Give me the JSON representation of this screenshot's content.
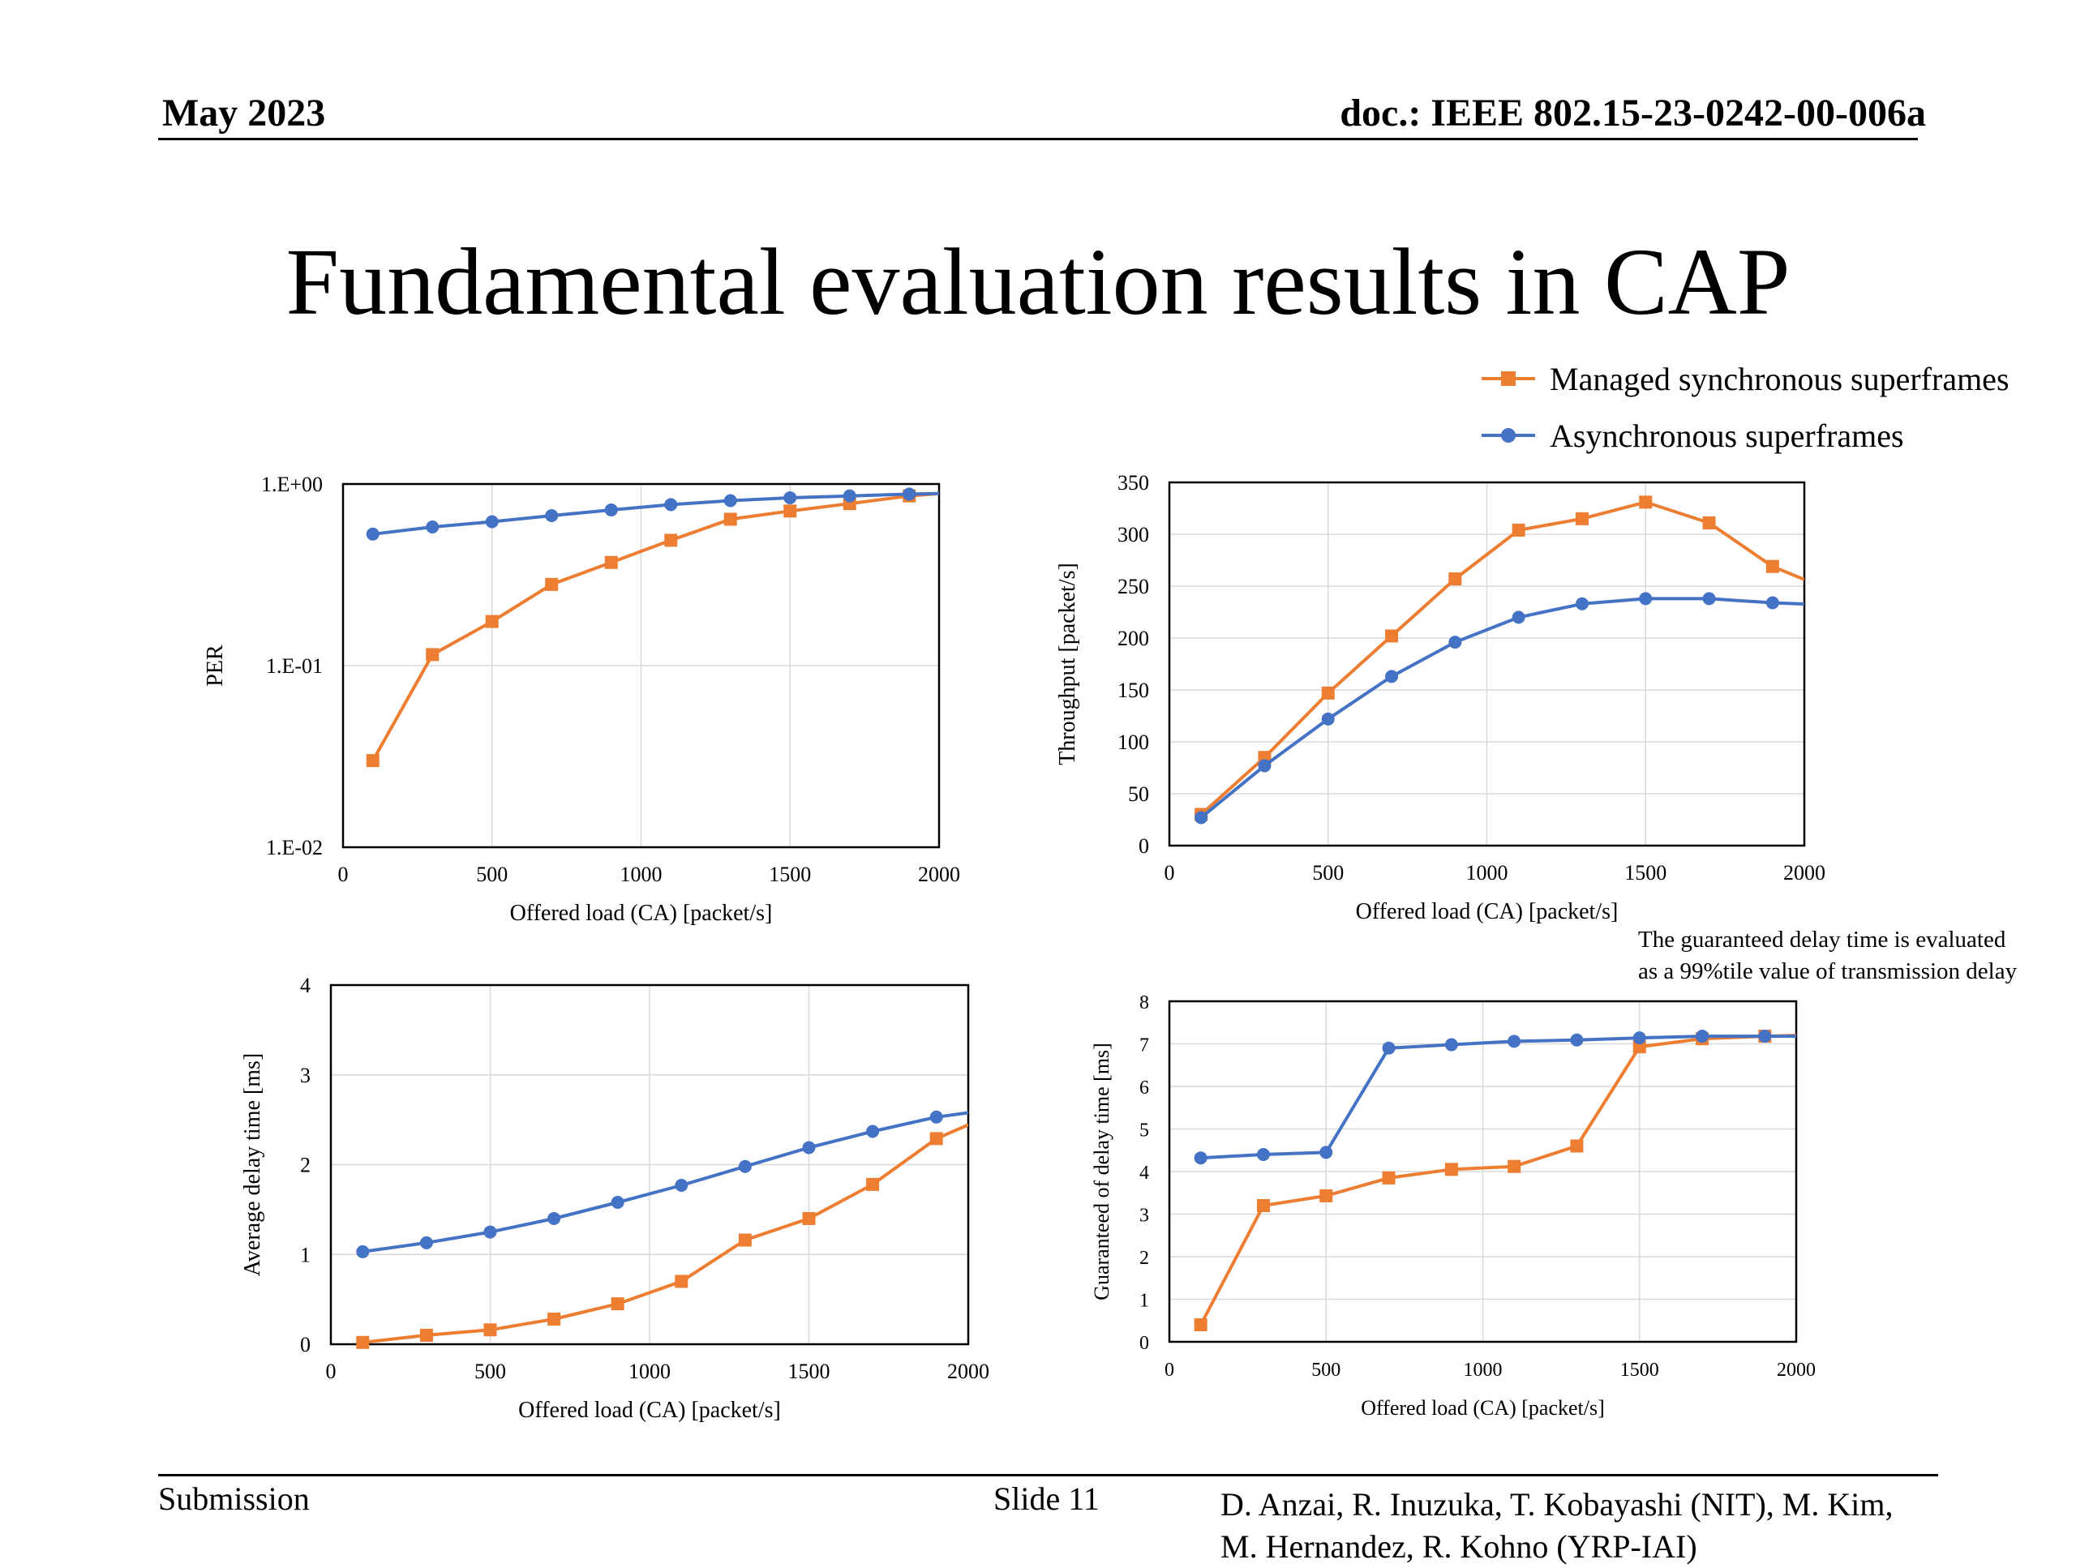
{
  "header": {
    "date": "May 2023",
    "doc": "doc.: IEEE 802.15-23-0242-00-006a"
  },
  "title": "Fundamental evaluation results in CAP",
  "legend": [
    {
      "label": "Managed synchronous superframes",
      "color": "#ED7D31",
      "marker": "square"
    },
    {
      "label": "Asynchronous superframes",
      "color": "#4472C4",
      "marker": "circle"
    }
  ],
  "note": [
    "The guaranteed delay time is evaluated",
    "as a 99%tile value of transmission delay"
  ],
  "footer": {
    "submission": "Submission",
    "slide": "Slide 11",
    "authors": [
      "D. Anzai, R. Inuzuka, T. Kobayashi (NIT), M. Kim,",
      "M. Hernandez, R. Kohno (YRP-IAI)"
    ]
  },
  "chart_data": [
    {
      "type": "line",
      "xlabel": "Offered load (CA) [packet/s]",
      "ylabel": "PER",
      "xlim": [
        0,
        2000
      ],
      "xticks": [
        "0",
        "500",
        "1000",
        "1500",
        "2000"
      ],
      "yscale": "log",
      "ylim": [
        0.01,
        1
      ],
      "yticks": [
        "1.E-02",
        "1.E-01",
        "1.E+00"
      ],
      "grid": true,
      "x": [
        100,
        300,
        500,
        700,
        900,
        1100,
        1300,
        1500,
        1700,
        1900
      ],
      "series": [
        {
          "name": "Managed synchronous superframes",
          "values": [
            0.03,
            0.115,
            0.175,
            0.28,
            0.37,
            0.49,
            0.64,
            0.71,
            0.78,
            0.86
          ]
        },
        {
          "name": "Asynchronous superframes",
          "values": [
            0.53,
            0.58,
            0.62,
            0.67,
            0.72,
            0.77,
            0.81,
            0.84,
            0.86,
            0.88
          ]
        }
      ]
    },
    {
      "type": "line",
      "xlabel": "Offered load (CA) [packet/s]",
      "ylabel": "Throughput [packet/s]",
      "xlim": [
        0,
        2000
      ],
      "xticks": [
        "0",
        "500",
        "1000",
        "1500",
        "2000"
      ],
      "ylim": [
        0,
        350
      ],
      "yticks": [
        "0",
        "50",
        "100",
        "150",
        "200",
        "250",
        "300",
        "350"
      ],
      "grid": true,
      "x": [
        100,
        300,
        500,
        700,
        900,
        1100,
        1300,
        1500,
        1700,
        1900
      ],
      "series": [
        {
          "name": "Managed synchronous superframes",
          "values": [
            30,
            85,
            147,
            202,
            257,
            304,
            315,
            331,
            311,
            269
          ]
        },
        {
          "name": "Asynchronous superframes",
          "values": [
            27,
            77,
            122,
            163,
            196,
            220,
            233,
            238,
            238,
            234
          ]
        }
      ]
    },
    {
      "type": "line",
      "xlabel": "Offered load (CA) [packet/s]",
      "ylabel": "Average delay time [ms]",
      "xlim": [
        0,
        2000
      ],
      "xticks": [
        "0",
        "500",
        "1000",
        "1500",
        "2000"
      ],
      "ylim": [
        0,
        4
      ],
      "yticks": [
        "0",
        "1",
        "2",
        "3",
        "4"
      ],
      "grid": true,
      "x": [
        100,
        300,
        500,
        700,
        900,
        1100,
        1300,
        1500,
        1700,
        1900
      ],
      "series": [
        {
          "name": "Managed synchronous superframes",
          "values": [
            0.02,
            0.1,
            0.16,
            0.28,
            0.45,
            0.7,
            1.16,
            1.4,
            1.78,
            2.29
          ]
        },
        {
          "name": "Asynchronous superframes",
          "values": [
            1.03,
            1.13,
            1.25,
            1.4,
            1.58,
            1.77,
            1.98,
            2.19,
            2.37,
            2.53
          ]
        }
      ]
    },
    {
      "type": "line",
      "xlabel": "Offered load (CA) [packet/s]",
      "ylabel": "Guaranteed of delay time [ms]",
      "xlim": [
        0,
        2000
      ],
      "xticks": [
        "0",
        "500",
        "1000",
        "1500",
        "2000"
      ],
      "ylim": [
        0,
        8
      ],
      "yticks": [
        "0",
        "1",
        "2",
        "3",
        "4",
        "5",
        "6",
        "7",
        "8"
      ],
      "grid": true,
      "x": [
        100,
        300,
        500,
        700,
        900,
        1100,
        1300,
        1500,
        1700,
        1900
      ],
      "series": [
        {
          "name": "Managed synchronous superframes",
          "values": [
            0.4,
            3.2,
            3.43,
            3.85,
            4.05,
            4.12,
            4.6,
            6.93,
            7.12,
            7.18
          ]
        },
        {
          "name": "Asynchronous superframes",
          "values": [
            4.32,
            4.4,
            4.45,
            6.9,
            6.98,
            7.06,
            7.09,
            7.14,
            7.18,
            7.18
          ]
        }
      ]
    }
  ]
}
